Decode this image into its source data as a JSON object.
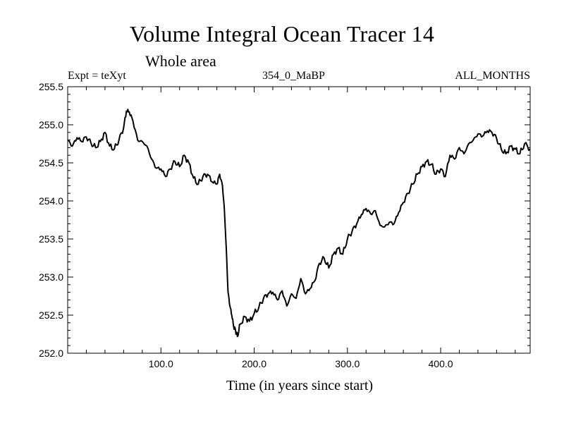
{
  "header": {
    "title": "Volume Integral Ocean Tracer 14",
    "subtitle": "Whole area",
    "expt": "Expt = teXyt",
    "run": "354_0_MaBP",
    "months": "ALL_MONTHS"
  },
  "chart_data": {
    "type": "line",
    "title": "Volume Integral Ocean Tracer 14",
    "xlabel": "Time (in years since start)",
    "ylabel": "",
    "xlim": [
      0,
      496
    ],
    "ylim": [
      252.0,
      255.5
    ],
    "x_ticks": [
      100,
      200,
      300,
      400
    ],
    "x_tick_labels": [
      "100.0",
      "200.0",
      "300.0",
      "400.0"
    ],
    "y_ticks": [
      252.0,
      252.5,
      253.0,
      253.5,
      254.0,
      254.5,
      255.0,
      255.5
    ],
    "y_tick_labels": [
      "252.0",
      "252.5",
      "253.0",
      "253.5",
      "254.0",
      "254.5",
      "255.0",
      "255.5"
    ],
    "grid": false,
    "series": [
      {
        "color": "#000000",
        "x": [
          0,
          5,
          10,
          15,
          20,
          25,
          30,
          35,
          40,
          45,
          50,
          55,
          60,
          63,
          66,
          70,
          75,
          80,
          85,
          90,
          95,
          100,
          105,
          110,
          115,
          120,
          125,
          130,
          135,
          140,
          145,
          150,
          155,
          160,
          163,
          166,
          168,
          170,
          172,
          174,
          176,
          178,
          180,
          182,
          185,
          190,
          195,
          200,
          205,
          210,
          215,
          220,
          225,
          230,
          235,
          240,
          245,
          250,
          255,
          260,
          265,
          270,
          275,
          280,
          285,
          290,
          295,
          300,
          305,
          310,
          315,
          320,
          325,
          330,
          335,
          340,
          345,
          350,
          355,
          360,
          365,
          370,
          375,
          380,
          385,
          390,
          395,
          400,
          405,
          410,
          415,
          420,
          425,
          430,
          435,
          440,
          445,
          450,
          455,
          460,
          465,
          470,
          475,
          480,
          485,
          490,
          496
        ],
        "y": [
          254.8,
          254.72,
          254.83,
          254.78,
          254.84,
          254.76,
          254.7,
          254.78,
          254.9,
          254.72,
          254.68,
          254.8,
          254.96,
          255.18,
          255.17,
          255.05,
          254.8,
          254.78,
          254.72,
          254.55,
          254.43,
          254.42,
          254.32,
          254.42,
          254.52,
          254.45,
          254.6,
          254.5,
          254.3,
          254.22,
          254.32,
          254.35,
          254.25,
          254.22,
          254.35,
          254.2,
          253.9,
          253.4,
          252.8,
          252.62,
          252.5,
          252.35,
          252.3,
          252.22,
          252.38,
          252.48,
          252.42,
          252.52,
          252.6,
          252.72,
          252.78,
          252.8,
          252.7,
          252.82,
          252.62,
          252.78,
          252.72,
          252.98,
          252.78,
          252.85,
          252.95,
          253.18,
          253.25,
          253.12,
          253.3,
          253.38,
          253.3,
          253.5,
          253.6,
          253.7,
          253.82,
          253.9,
          253.83,
          253.87,
          253.68,
          253.66,
          253.72,
          253.7,
          253.85,
          253.98,
          254.1,
          254.22,
          254.35,
          254.45,
          254.52,
          254.48,
          254.35,
          254.42,
          254.32,
          254.6,
          254.55,
          254.7,
          254.62,
          254.75,
          254.8,
          254.88,
          254.85,
          254.92,
          254.9,
          254.82,
          254.68,
          254.62,
          254.72,
          254.68,
          254.62,
          254.75,
          254.68
        ]
      }
    ]
  }
}
